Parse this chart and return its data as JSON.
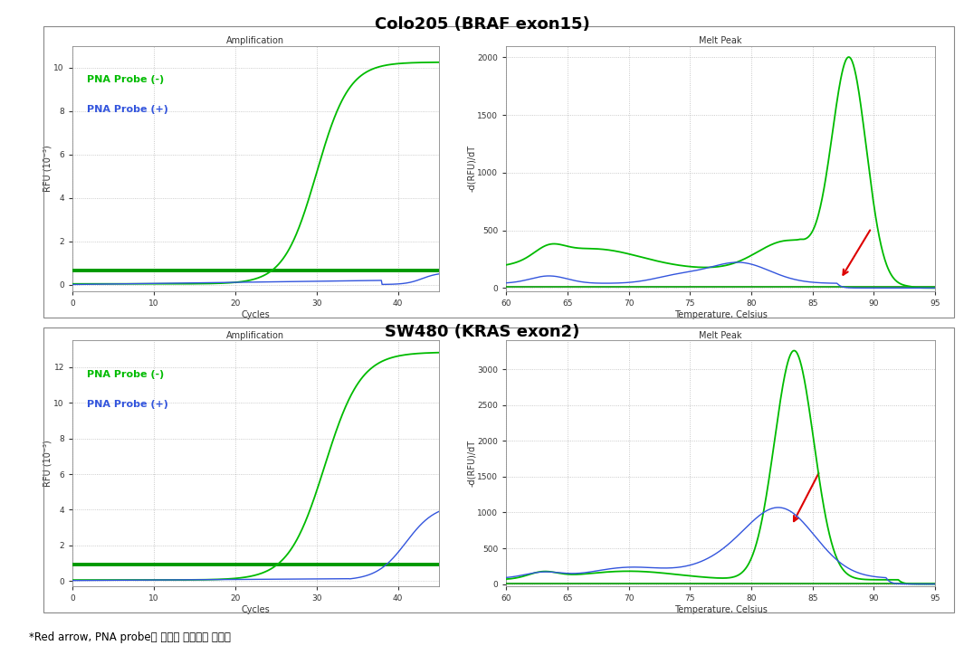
{
  "title1": "Colo205 (BRAF exon15)",
  "title2": "SW480 (KRAS exon2)",
  "footer": "*Red arrow, PNA probe에 억제된 정상적인 유전자",
  "color_green": "#00BB00",
  "color_blue": "#3355DD",
  "color_red": "#DD0000",
  "color_dark_green": "#009900",
  "color_cyan_green": "#00CC66",
  "amp_xlabel": "Cycles",
  "amp_ylabel": "RFU (10⁻³)",
  "amp_title": "Amplification",
  "melt_xlabel": "Temperature, Celsius",
  "melt_ylabel": "-d(RFU)/dT",
  "melt_title": "Melt Peak",
  "legend_minus": "PNA Probe (-)",
  "legend_plus": "PNA Probe (+)",
  "bg_color": "#FFFFFF",
  "panel_bg": "#FFFFFF",
  "outer_bg": "#F0F0F0"
}
